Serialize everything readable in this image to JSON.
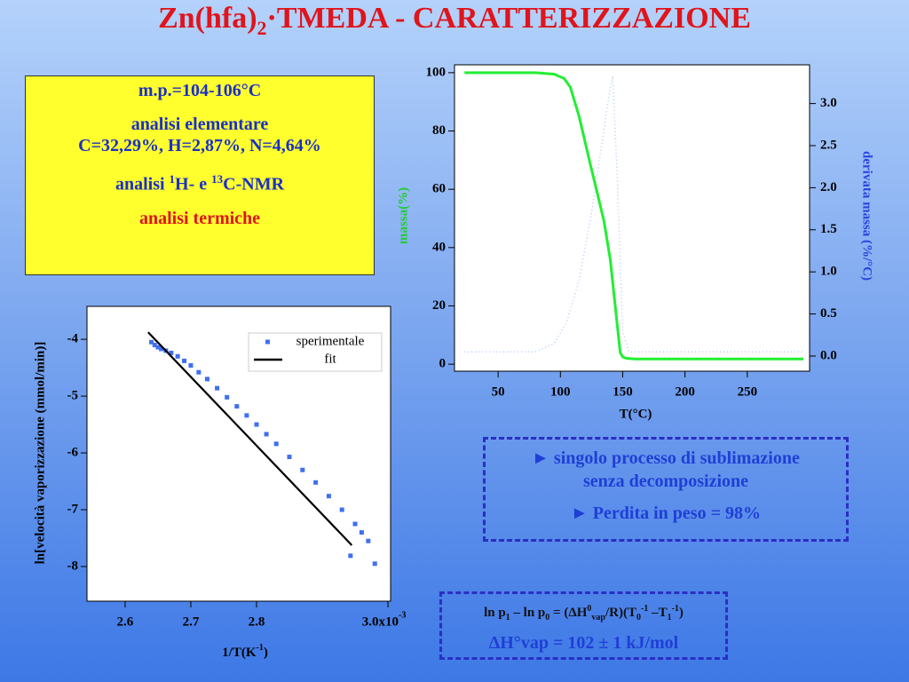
{
  "title": {
    "parts": [
      "Zn(hfa)",
      "2",
      "·TMEDA - CARATTERIZZAZIONE"
    ]
  },
  "info_box": {
    "melting_point": "m.p.=104-106°C",
    "elemental_title": "analisi elementare",
    "elemental": "C=32,29%, H=2,87%, N=4,64%",
    "nmr_parts": [
      "analisi ",
      "1",
      "H- e ",
      "13",
      "C-NMR"
    ],
    "thermal": "analisi termiche"
  },
  "chart_data": [
    {
      "type": "line",
      "xlabel": "T(°C)",
      "ylabel": "massa(%)",
      "y2label": "derivata massa (%/°C)",
      "xlim": [
        15,
        300
      ],
      "ylim": [
        -2.4,
        102.7
      ],
      "y2lim": [
        -0.18,
        3.46
      ],
      "xticks": [
        50,
        100,
        150,
        200,
        250
      ],
      "yticks": [
        0,
        20,
        40,
        60,
        80,
        100
      ],
      "y2ticks": [
        {
          "value": 0,
          "label": "0.0"
        },
        0.5,
        {
          "value": 1,
          "label": "1.0"
        },
        1.5,
        {
          "value": 2,
          "label": "2.0"
        },
        2.5,
        {
          "value": 3,
          "label": "3.0"
        }
      ],
      "series": [
        {
          "color": "#b3cbf6",
          "axis": "y2",
          "style": "dotted",
          "x": [
            23,
            80,
            95,
            105,
            115,
            125,
            132,
            138,
            142,
            146,
            150,
            155,
            295
          ],
          "values": [
            0.05,
            0.05,
            0.15,
            0.4,
            0.9,
            1.7,
            2.4,
            3.0,
            3.33,
            2.0,
            0.3,
            0.05,
            0.05
          ]
        },
        {
          "color": "#22ee33",
          "axis": "y",
          "style": "solid",
          "x": [
            23,
            80,
            95,
            103,
            108,
            115,
            124,
            130,
            135,
            140,
            143,
            146,
            148,
            150,
            153,
            160,
            200,
            295
          ],
          "values": [
            100,
            100,
            99.5,
            98,
            95,
            85,
            68.6,
            58,
            49,
            36,
            24,
            12,
            4,
            2.5,
            2,
            1.8,
            1.8,
            1.8
          ]
        }
      ]
    },
    {
      "type": "scatter",
      "ylabel": "ln[velocità vaporizzazione (mmol/min)]",
      "xlabel_parts": [
        "1/T(K",
        "-1",
        ")"
      ],
      "xtick_exponent": "-3",
      "xlim": [
        2.542,
        3.004
      ],
      "ylim": [
        -8.61,
        -3.42
      ],
      "xticks": [
        2.6,
        2.7,
        2.8,
        {
          "value": 3,
          "label": "3.0x10"
        }
      ],
      "yticks": [
        -4,
        -5,
        -6,
        -7,
        -8
      ],
      "legend": "upper right",
      "series": [
        {
          "name": "sperimentale",
          "type": "scatter",
          "color": "#3f6ff2",
          "x": [
            2.64,
            2.645,
            2.65,
            2.655,
            2.662,
            2.67,
            2.68,
            2.69,
            2.7,
            2.712,
            2.725,
            2.74,
            2.755,
            2.77,
            2.785,
            2.8,
            2.815,
            2.83,
            2.85,
            2.87,
            2.89,
            2.91,
            2.93,
            2.943,
            2.95,
            2.96,
            2.97,
            2.98
          ],
          "values": [
            -4.05,
            -4.1,
            -4.14,
            -4.17,
            -4.2,
            -4.24,
            -4.3,
            -4.38,
            -4.46,
            -4.58,
            -4.7,
            -4.86,
            -5.02,
            -5.18,
            -5.34,
            -5.5,
            -5.67,
            -5.84,
            -6.07,
            -6.3,
            -6.52,
            -6.76,
            -7.0,
            -7.81,
            -7.25,
            -7.4,
            -7.55,
            -7.95
          ]
        },
        {
          "name": "fit",
          "type": "line",
          "color": "#000000",
          "x": [
            2.635,
            2.945
          ],
          "values": [
            -3.875,
            -7.625
          ]
        }
      ]
    }
  ],
  "notes_box": {
    "lines": [
      "► singolo processo di sublimazione",
      "senza decomposizione",
      "► Perdita in peso = 98%"
    ]
  },
  "equation_box": {
    "parts": [
      "ln p",
      "1",
      " – ln p",
      "0",
      " = (ΔH",
      "0",
      "vap",
      "/R)(T",
      "0",
      "-1",
      " –T",
      "1",
      "-1",
      ")"
    ],
    "result": "ΔH°vap = 102 ± 1 kJ/mol"
  }
}
